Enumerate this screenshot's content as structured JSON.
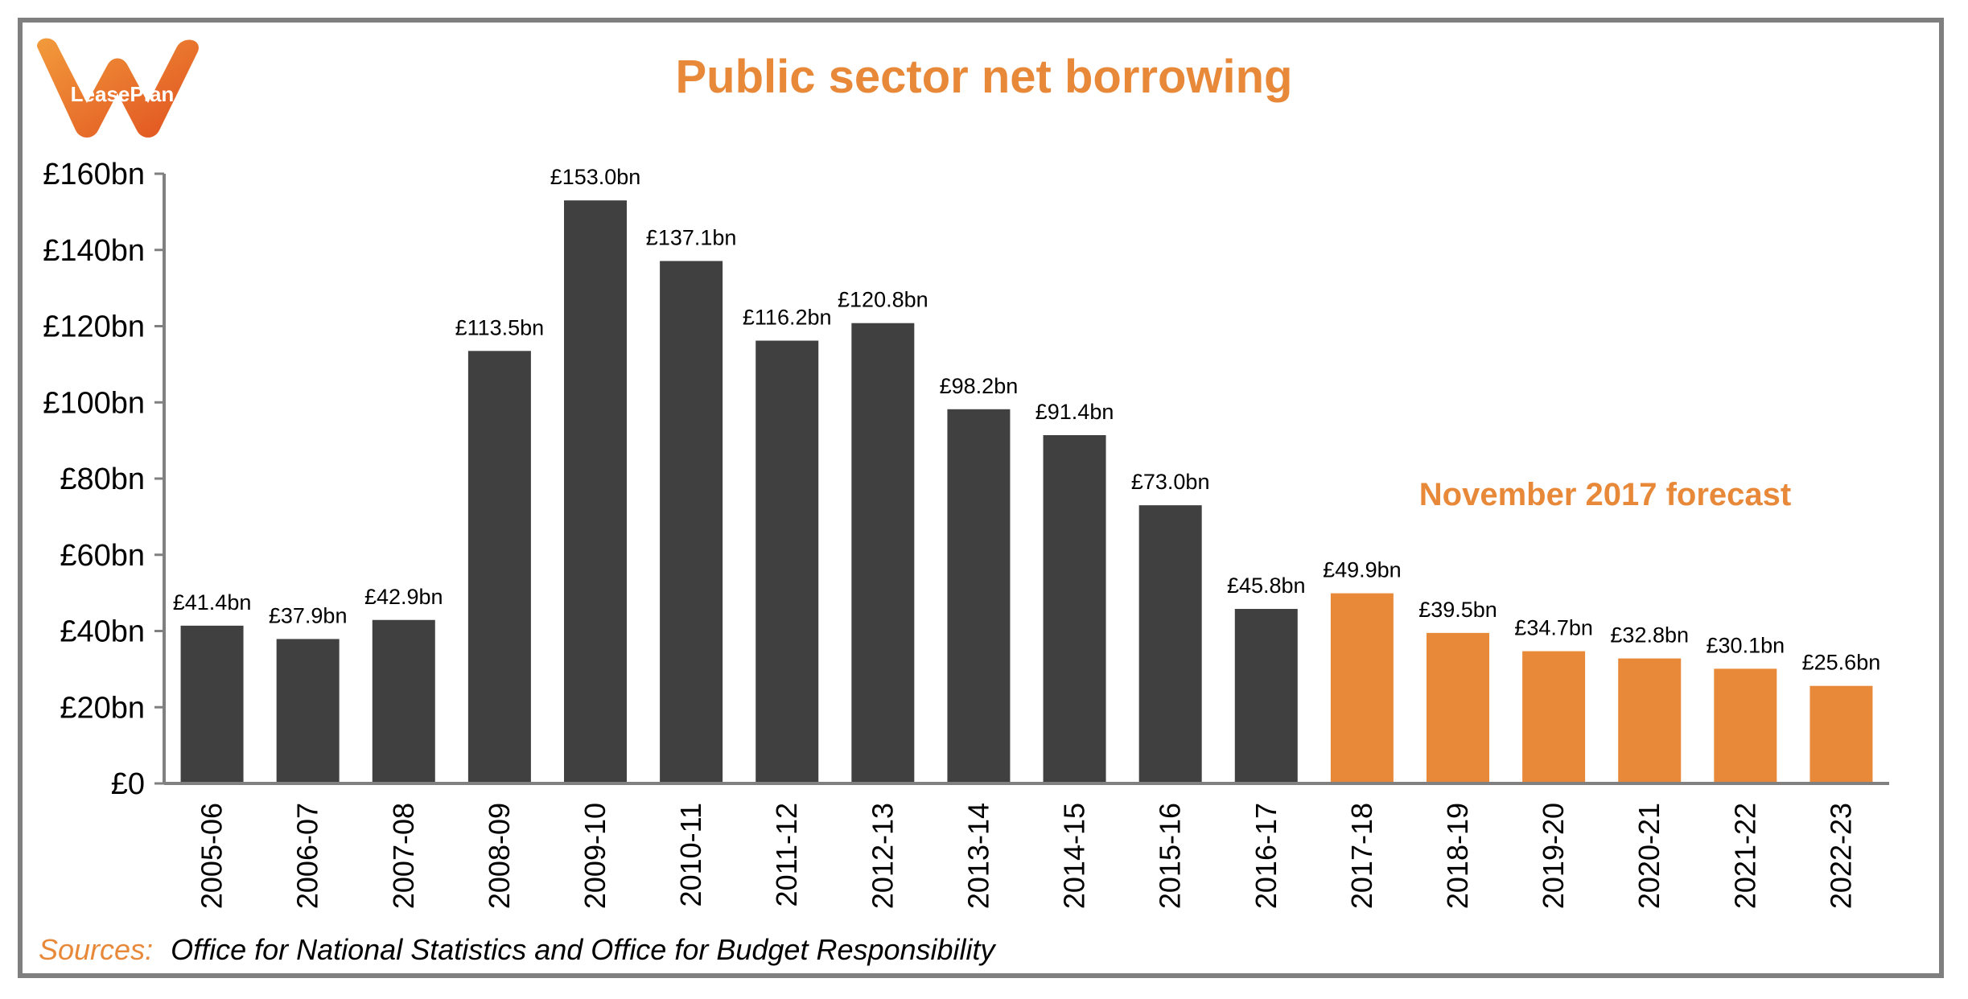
{
  "header": {
    "title": "Public sector net borrowing",
    "logo_text": "LeasePlan"
  },
  "annotation": "November 2017 forecast",
  "footer": {
    "sources_label": "Sources:",
    "sources_text": "Office for National Statistics and Office for Budget Responsibility"
  },
  "colors": {
    "actual": "#404040",
    "forecast": "#e8893a",
    "accent": "#e8893a",
    "frame": "#7f7f7f",
    "axis": "#808080"
  },
  "chart_data": {
    "type": "bar",
    "title": "Public sector net borrowing",
    "xlabel": "",
    "ylabel": "",
    "ylim": [
      0,
      160
    ],
    "yticks": [
      0,
      20,
      40,
      60,
      80,
      100,
      120,
      140,
      160
    ],
    "ytick_labels": [
      "£0",
      "£20bn",
      "£40bn",
      "£60bn",
      "£80bn",
      "£100bn",
      "£120bn",
      "£140bn",
      "£160bn"
    ],
    "categories": [
      "2005-06",
      "2006-07",
      "2007-08",
      "2008-09",
      "2009-10",
      "2010-11",
      "2011-12",
      "2012-13",
      "2013-14",
      "2014-15",
      "2015-16",
      "2016-17",
      "2017-18",
      "2018-19",
      "2019-20",
      "2020-21",
      "2021-22",
      "2022-23"
    ],
    "values": [
      41.4,
      37.9,
      42.9,
      113.5,
      153.0,
      137.1,
      116.2,
      120.8,
      98.2,
      91.4,
      73.0,
      45.8,
      49.9,
      39.5,
      34.7,
      32.8,
      30.1,
      25.6
    ],
    "data_labels": [
      "£41.4bn",
      "£37.9bn",
      "£42.9bn",
      "£113.5bn",
      "£153.0bn",
      "£137.1bn",
      "£116.2bn",
      "£120.8bn",
      "£98.2bn",
      "£91.4bn",
      "£73.0bn",
      "£45.8bn",
      "£49.9bn",
      "£39.5bn",
      "£34.7bn",
      "£32.8bn",
      "£30.1bn",
      "£25.6bn"
    ],
    "forecast_start_index": 12,
    "grid": false,
    "legend": "none"
  }
}
